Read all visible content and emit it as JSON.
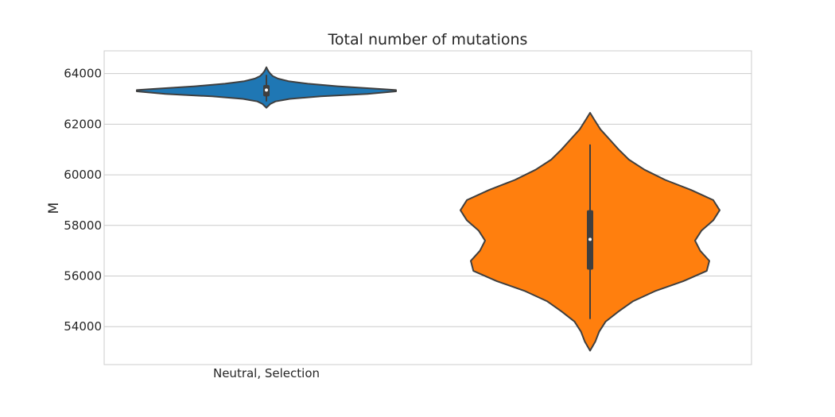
{
  "chart_data": {
    "type": "violin",
    "title": "Total number of mutations",
    "xlabel": "",
    "ylabel": "M",
    "x_tick_label": "Neutral, Selection",
    "ylim": [
      52500,
      64900
    ],
    "yticks": [
      54000,
      56000,
      58000,
      60000,
      62000,
      64000
    ],
    "y_tick_labels": [
      "54000",
      "56000",
      "58000",
      "60000",
      "62000",
      "64000"
    ],
    "grid": true,
    "series": [
      {
        "color": "#1f77b4",
        "min": 62650,
        "max": 64250,
        "q1": 63100,
        "median": 63350,
        "q3": 63550,
        "whisker_low": 62900,
        "whisker_high": 63950,
        "density": [
          [
            62650,
            0.0
          ],
          [
            62700,
            0.01
          ],
          [
            62800,
            0.03
          ],
          [
            62900,
            0.07
          ],
          [
            63000,
            0.18
          ],
          [
            63100,
            0.42
          ],
          [
            63200,
            0.78
          ],
          [
            63300,
            1.0
          ],
          [
            63350,
            1.0
          ],
          [
            63400,
            0.85
          ],
          [
            63500,
            0.55
          ],
          [
            63600,
            0.32
          ],
          [
            63700,
            0.17
          ],
          [
            63800,
            0.09
          ],
          [
            63900,
            0.05
          ],
          [
            64000,
            0.03
          ],
          [
            64100,
            0.015
          ],
          [
            64200,
            0.005
          ],
          [
            64250,
            0.0
          ]
        ]
      },
      {
        "color": "#ff7f0e",
        "min": 53050,
        "max": 62450,
        "q1": 56250,
        "median": 57450,
        "q3": 58600,
        "whisker_low": 54300,
        "whisker_high": 61200,
        "density": [
          [
            53050,
            0.0
          ],
          [
            53400,
            0.04
          ],
          [
            53800,
            0.07
          ],
          [
            54200,
            0.12
          ],
          [
            54600,
            0.22
          ],
          [
            55000,
            0.33
          ],
          [
            55400,
            0.5
          ],
          [
            55800,
            0.72
          ],
          [
            56200,
            0.9
          ],
          [
            56600,
            0.92
          ],
          [
            57000,
            0.85
          ],
          [
            57400,
            0.81
          ],
          [
            57800,
            0.86
          ],
          [
            58200,
            0.95
          ],
          [
            58600,
            1.0
          ],
          [
            59000,
            0.95
          ],
          [
            59400,
            0.78
          ],
          [
            59800,
            0.58
          ],
          [
            60200,
            0.42
          ],
          [
            60600,
            0.3
          ],
          [
            61000,
            0.22
          ],
          [
            61400,
            0.15
          ],
          [
            61800,
            0.08
          ],
          [
            62200,
            0.03
          ],
          [
            62450,
            0.0
          ]
        ]
      }
    ]
  }
}
